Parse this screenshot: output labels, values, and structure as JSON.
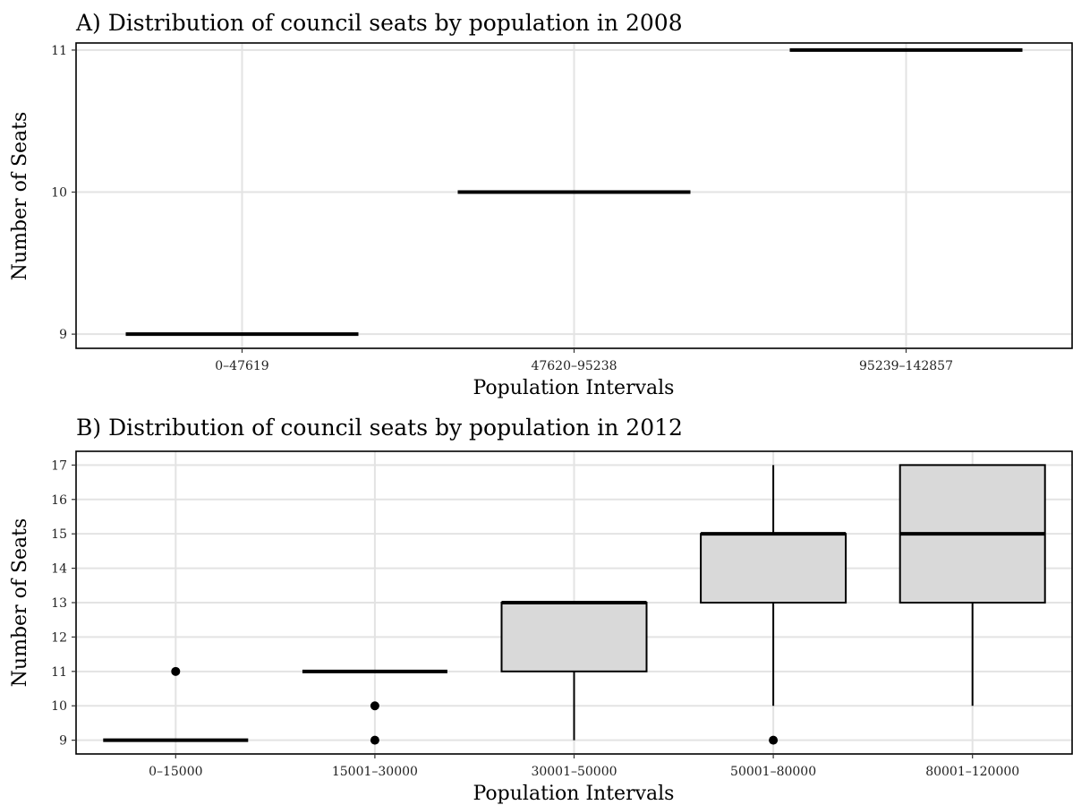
{
  "chart_data": [
    {
      "type": "box",
      "title": "A) Distribution of council seats by population in 2008",
      "xlabel": "Population Intervals",
      "ylabel": "Number of Seats",
      "categories": [
        "0–47619",
        "47620–95238",
        "95239–142857"
      ],
      "ylim": [
        8.9,
        11.05
      ],
      "yticks": [
        9,
        10,
        11
      ],
      "grid": true,
      "fill": "#d9d9d9",
      "boxes": [
        {
          "category": "0–47619",
          "min": 9,
          "q1": 9,
          "median": 9,
          "q3": 9,
          "max": 9,
          "outliers": []
        },
        {
          "category": "47620–95238",
          "min": 10,
          "q1": 10,
          "median": 10,
          "q3": 10,
          "max": 10,
          "outliers": []
        },
        {
          "category": "95239–142857",
          "min": 11,
          "q1": 11,
          "median": 11,
          "q3": 11,
          "max": 11,
          "outliers": []
        }
      ]
    },
    {
      "type": "box",
      "title": "B) Distribution of council seats by population in 2012",
      "xlabel": "Population Intervals",
      "ylabel": "Number of Seats",
      "categories": [
        "0–15000",
        "15001–30000",
        "30001–50000",
        "50001–80000",
        "80001–120000"
      ],
      "ylim": [
        8.6,
        17.4
      ],
      "yticks": [
        9,
        10,
        11,
        12,
        13,
        14,
        15,
        16,
        17
      ],
      "grid": true,
      "fill": "#d9d9d9",
      "boxes": [
        {
          "category": "0–15000",
          "min": 9,
          "q1": 9,
          "median": 9,
          "q3": 9,
          "max": 9,
          "outliers": [
            11
          ]
        },
        {
          "category": "15001–30000",
          "min": 11,
          "q1": 11,
          "median": 11,
          "q3": 11,
          "max": 11,
          "outliers": [
            10,
            9
          ]
        },
        {
          "category": "30001–50000",
          "min": 9,
          "q1": 11,
          "median": 13,
          "q3": 13,
          "max": 13,
          "outliers": []
        },
        {
          "category": "50001–80000",
          "min": 10,
          "q1": 13,
          "median": 15,
          "q3": 15,
          "max": 17,
          "outliers": [
            9
          ]
        },
        {
          "category": "80001–120000",
          "min": 10,
          "q1": 13,
          "median": 15,
          "q3": 17,
          "max": 17,
          "outliers": []
        }
      ]
    }
  ]
}
